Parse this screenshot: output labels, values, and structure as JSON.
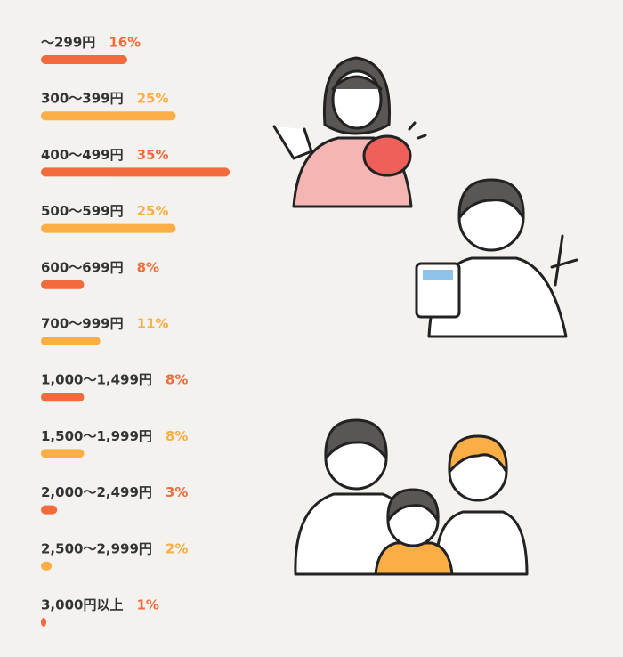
{
  "chart_data": {
    "type": "hbar",
    "categories": [
      "〜299円",
      "300〜399円",
      "400〜499円",
      "500〜599円",
      "600〜699円",
      "700〜999円",
      "1,000〜1,499円",
      "1,500〜1,999円",
      "2,000〜2,499円",
      "2,500〜2,999円",
      "3,000円以上"
    ],
    "values": [
      16,
      25,
      35,
      25,
      8,
      11,
      8,
      8,
      3,
      2,
      1
    ],
    "value_labels": [
      "16%",
      "25%",
      "35%",
      "25%",
      "8%",
      "11%",
      "8%",
      "8%",
      "3%",
      "2%",
      "1%"
    ],
    "colors": [
      "#f26b3d",
      "#fbae45",
      "#f26b3d",
      "#fbae45",
      "#f26b3d",
      "#fbae45",
      "#f26b3d",
      "#fbae45",
      "#f26b3d",
      "#fbae45",
      "#f26b3d"
    ]
  }
}
